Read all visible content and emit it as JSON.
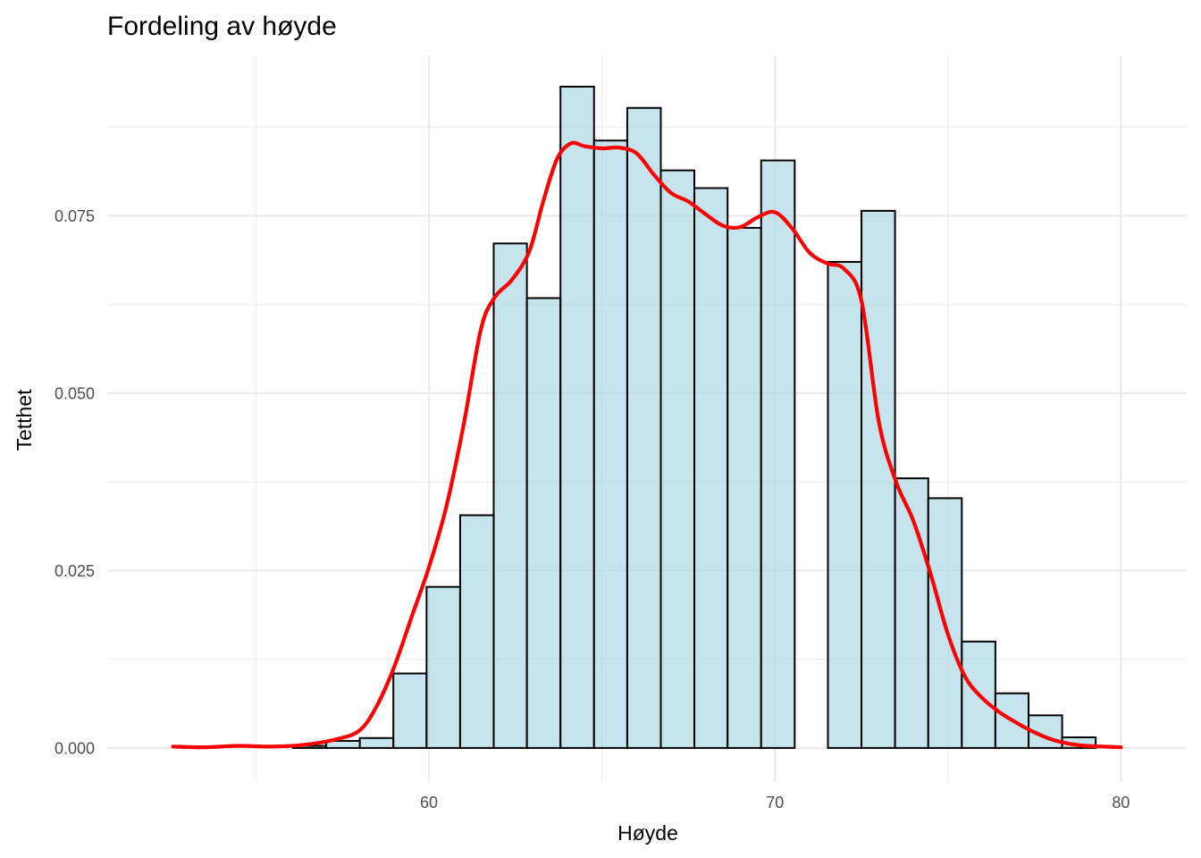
{
  "chart_data": {
    "type": "bar",
    "title": "Fordeling av høyde",
    "xlabel": "Høyde",
    "ylabel": "Tetthet",
    "xlim": [
      50.7,
      81.9
    ],
    "ylim": [
      -0.0048,
      0.0976
    ],
    "x_ticks": [
      60,
      70,
      80
    ],
    "x_tick_labels": [
      "60",
      "70",
      "80"
    ],
    "y_ticks": [
      0,
      0.025,
      0.05,
      0.075
    ],
    "y_tick_labels": [
      "0.000",
      "0.025",
      "0.050",
      "0.075"
    ],
    "grid": true,
    "legend": "none",
    "bin_width": 0.9665,
    "histogram": {
      "bins": [
        {
          "x0": 52.2,
          "x1": 53.17,
          "density": 0.0
        },
        {
          "x0": 53.17,
          "x1": 54.13,
          "density": 0.0
        },
        {
          "x0": 54.13,
          "x1": 55.1,
          "density": 0.0
        },
        {
          "x0": 55.1,
          "x1": 56.07,
          "density": 0.0
        },
        {
          "x0": 56.07,
          "x1": 57.03,
          "density": 0.0003
        },
        {
          "x0": 57.03,
          "x1": 58.0,
          "density": 0.001
        },
        {
          "x0": 58.0,
          "x1": 58.97,
          "density": 0.0014
        },
        {
          "x0": 58.97,
          "x1": 59.93,
          "density": 0.0105
        },
        {
          "x0": 59.93,
          "x1": 60.9,
          "density": 0.0227
        },
        {
          "x0": 60.9,
          "x1": 61.87,
          "density": 0.0328
        },
        {
          "x0": 61.87,
          "x1": 62.83,
          "density": 0.0711
        },
        {
          "x0": 62.83,
          "x1": 63.8,
          "density": 0.0634
        },
        {
          "x0": 63.8,
          "x1": 64.77,
          "density": 0.0932
        },
        {
          "x0": 64.77,
          "x1": 65.73,
          "density": 0.0856
        },
        {
          "x0": 65.73,
          "x1": 66.7,
          "density": 0.0902
        },
        {
          "x0": 66.7,
          "x1": 67.67,
          "density": 0.0814
        },
        {
          "x0": 67.67,
          "x1": 68.63,
          "density": 0.0789
        },
        {
          "x0": 68.63,
          "x1": 69.6,
          "density": 0.0733
        },
        {
          "x0": 69.6,
          "x1": 70.57,
          "density": 0.0828
        },
        {
          "x0": 70.57,
          "x1": 71.53,
          "density": 0.0
        },
        {
          "x0": 71.53,
          "x1": 72.5,
          "density": 0.0685
        },
        {
          "x0": 72.5,
          "x1": 73.47,
          "density": 0.0757
        },
        {
          "x0": 73.47,
          "x1": 74.43,
          "density": 0.038
        },
        {
          "x0": 74.43,
          "x1": 75.4,
          "density": 0.0352
        },
        {
          "x0": 75.4,
          "x1": 76.37,
          "density": 0.015
        },
        {
          "x0": 76.37,
          "x1": 77.33,
          "density": 0.0077
        },
        {
          "x0": 77.33,
          "x1": 78.3,
          "density": 0.0046
        },
        {
          "x0": 78.3,
          "x1": 79.27,
          "density": 0.0015
        },
        {
          "x0": 79.27,
          "x1": 80.23,
          "density": 0.0
        },
        {
          "x0": 80.23,
          "x1": 81.2,
          "density": 0.0
        }
      ]
    },
    "density_curve": {
      "color": "#ff0000",
      "x": [
        52.6,
        53.5,
        54.5,
        55.4,
        56.3,
        57.3,
        58.0,
        58.5,
        59.0,
        59.5,
        60.0,
        60.5,
        61.0,
        61.5,
        61.9,
        62.4,
        62.9,
        63.3,
        63.7,
        64.1,
        64.5,
        65.0,
        65.5,
        66.0,
        66.5,
        67.0,
        67.5,
        68.0,
        68.5,
        69.0,
        69.5,
        70.0,
        70.5,
        71.0,
        71.5,
        72.0,
        72.5,
        73.0,
        73.5,
        74.0,
        74.5,
        75.0,
        75.5,
        76.0,
        76.5,
        77.0,
        77.5,
        78.0,
        78.5,
        79.0,
        79.5,
        80.0
      ],
      "y": [
        0.0002,
        0.0001,
        0.0003,
        0.0002,
        0.0004,
        0.0012,
        0.0025,
        0.006,
        0.0115,
        0.0185,
        0.0255,
        0.034,
        0.0455,
        0.059,
        0.0635,
        0.066,
        0.07,
        0.077,
        0.083,
        0.0852,
        0.0848,
        0.0845,
        0.0846,
        0.0838,
        0.0808,
        0.0782,
        0.077,
        0.0752,
        0.0736,
        0.0734,
        0.0748,
        0.0755,
        0.0732,
        0.0698,
        0.0683,
        0.0675,
        0.063,
        0.046,
        0.0375,
        0.032,
        0.0245,
        0.016,
        0.01,
        0.007,
        0.005,
        0.0035,
        0.0022,
        0.0012,
        0.0006,
        0.0003,
        0.0002,
        0.0001
      ]
    }
  }
}
